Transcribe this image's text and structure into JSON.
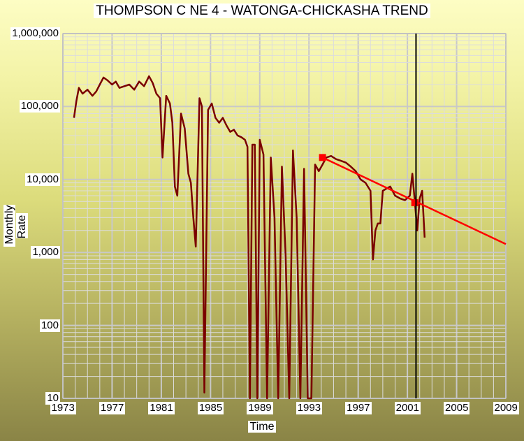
{
  "chart_data": {
    "type": "line",
    "title": "THOMPSON C NE 4 - WATONGA-CHICKASHA TREND",
    "xlabel": "Time",
    "ylabel": "Monthly Rate",
    "yscale": "log",
    "xlim": [
      1973,
      2009
    ],
    "ylim": [
      10,
      1000000
    ],
    "x_ticks": [
      "1973",
      "1977",
      "1981",
      "1985",
      "1989",
      "1993",
      "1997",
      "2001",
      "2005",
      "2009"
    ],
    "y_ticks": [
      "1,000,000",
      "100,000",
      "10,000",
      "1,000",
      "100",
      "10"
    ],
    "grid": true,
    "vertical_marker_year": 2001.7,
    "series": [
      {
        "color": "#7a0000",
        "x": [
          1973.9,
          1974.1,
          1974.3,
          1974.6,
          1975.0,
          1975.4,
          1975.7,
          1976.0,
          1976.3,
          1976.6,
          1977.0,
          1977.3,
          1977.6,
          1978.0,
          1978.4,
          1978.8,
          1979.2,
          1979.6,
          1980.0,
          1980.3,
          1980.6,
          1980.9,
          1981.1,
          1981.4,
          1981.7,
          1981.9,
          1982.1,
          1982.3,
          1982.6,
          1982.9,
          1983.2,
          1983.4,
          1983.6,
          1983.8,
          1984.1,
          1984.3,
          1984.5,
          1984.8,
          1985.1,
          1985.4,
          1985.7,
          1986.0,
          1986.3,
          1986.6,
          1986.9,
          1987.2,
          1987.5,
          1987.8,
          1988.0,
          1988.2,
          1988.4,
          1988.6,
          1988.8,
          1989.0,
          1989.3,
          1989.6,
          1989.9,
          1990.2,
          1990.5,
          1990.8,
          1991.1,
          1991.4,
          1991.7,
          1992.0,
          1992.3,
          1992.6,
          1992.9,
          1993.2,
          1993.5,
          1993.8,
          1994.1,
          1994.4,
          1994.8,
          1995.2,
          1995.6,
          1996.0,
          1996.4,
          1996.8,
          1997.2,
          1997.6,
          1998.0,
          1998.2,
          1998.4,
          1998.6,
          1998.8,
          1999.0,
          1999.3,
          1999.6,
          2000.0,
          2000.4,
          2000.8,
          2001.2,
          2001.4,
          2001.6,
          2001.8,
          2002.0,
          2002.2,
          2002.4
        ],
        "y": [
          70000,
          120000,
          180000,
          150000,
          170000,
          140000,
          160000,
          200000,
          250000,
          230000,
          200000,
          220000,
          180000,
          190000,
          200000,
          170000,
          220000,
          190000,
          260000,
          210000,
          150000,
          130000,
          20000,
          140000,
          110000,
          60000,
          8000,
          6000,
          80000,
          50000,
          12000,
          9000,
          3000,
          1200,
          130000,
          100000,
          12,
          90000,
          110000,
          70000,
          60000,
          70000,
          55000,
          45000,
          48000,
          40000,
          38000,
          35000,
          28000,
          10,
          30000,
          30000,
          10,
          35000,
          22000,
          10,
          20000,
          3000,
          10,
          15000,
          900,
          10,
          25000,
          3000,
          10,
          14000,
          10,
          10,
          16000,
          13000,
          16000,
          20000,
          21000,
          19000,
          18000,
          17000,
          15000,
          13000,
          10000,
          9000,
          7000,
          800,
          2000,
          2500,
          2500,
          7000,
          7500,
          8000,
          6000,
          5500,
          5200,
          6000,
          12000,
          5000,
          2000,
          5500,
          7000,
          1600
        ]
      },
      {
        "name": "",
        "color": "#ff0000",
        "x": [
          1994.1,
          2009.0
        ],
        "y": [
          20000,
          1300
        ]
      }
    ],
    "trend_points": [
      {
        "x": 1994.1,
        "y": 20000
      },
      {
        "x": 2001.6,
        "y": 4800
      }
    ]
  }
}
